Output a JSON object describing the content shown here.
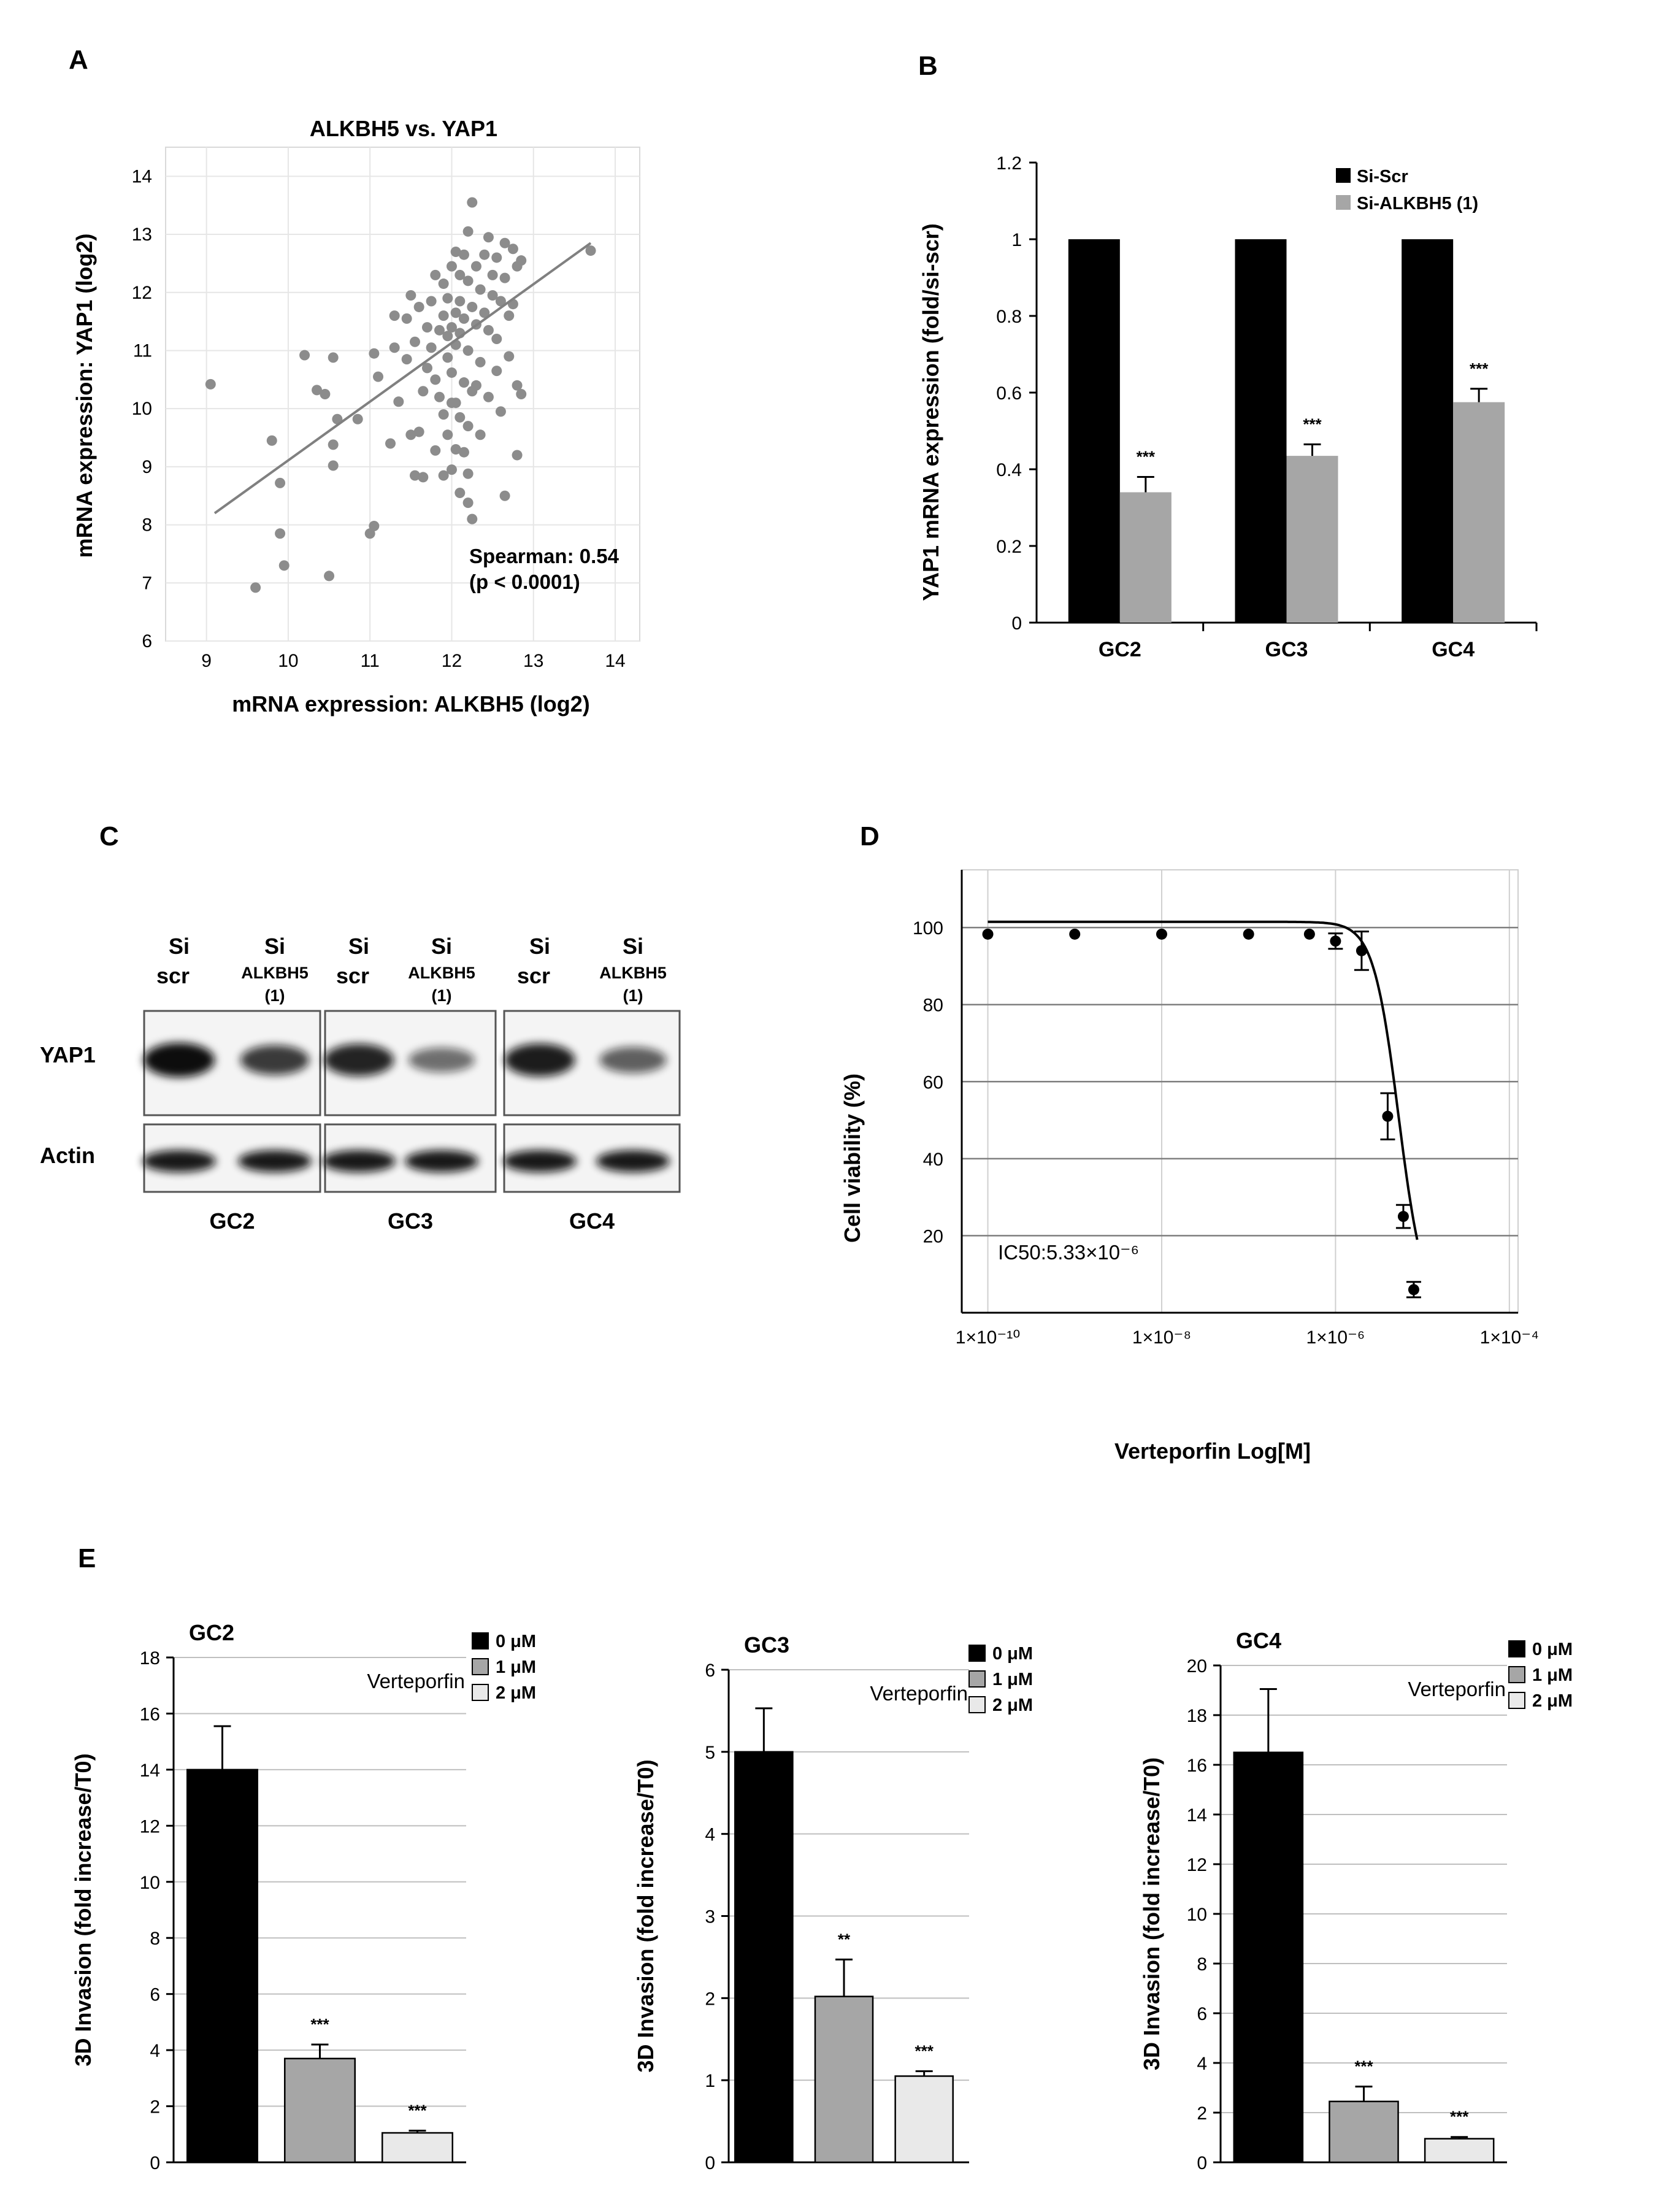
{
  "panels": {
    "A": "A",
    "B": "B",
    "C": "C",
    "D": "D",
    "E": "E"
  },
  "colors": {
    "black": "#000000",
    "gray": "#a6a6a6",
    "light": "#e9e9e9",
    "scatter": "#8c8c8c",
    "grid": "#cfcfcf"
  },
  "chart_data": [
    {
      "id": "A",
      "type": "scatter",
      "title": "ALKBH5 vs. YAP1",
      "xlabel": "mRNA expression: ALKBH5 (log2)",
      "ylabel": "mRNA expression: YAP1 (log2)",
      "xlim": [
        8.5,
        14.3
      ],
      "ylim": [
        6,
        14.5
      ],
      "xticks": [
        9,
        10,
        11,
        12,
        13,
        14
      ],
      "yticks": [
        6,
        7,
        8,
        9,
        10,
        11,
        12,
        13,
        14
      ],
      "fit": {
        "x": [
          9.1,
          13.7
        ],
        "y": [
          8.2,
          12.85
        ]
      },
      "annotation": [
        "Spearman: 0.54",
        "(p < 0.0001)"
      ],
      "points": [
        [
          9.05,
          10.42
        ],
        [
          9.6,
          6.92
        ],
        [
          9.8,
          9.45
        ],
        [
          9.9,
          7.85
        ],
        [
          9.9,
          8.72
        ],
        [
          9.95,
          7.3
        ],
        [
          10.2,
          10.92
        ],
        [
          10.35,
          10.32
        ],
        [
          10.45,
          10.25
        ],
        [
          10.5,
          7.12
        ],
        [
          10.55,
          10.88
        ],
        [
          10.55,
          9.38
        ],
        [
          10.55,
          9.02
        ],
        [
          10.6,
          9.82
        ],
        [
          10.85,
          9.82
        ],
        [
          11.0,
          7.85
        ],
        [
          11.05,
          7.98
        ],
        [
          11.05,
          10.95
        ],
        [
          11.1,
          10.55
        ],
        [
          11.25,
          9.4
        ],
        [
          11.3,
          11.05
        ],
        [
          11.3,
          11.6
        ],
        [
          11.35,
          10.12
        ],
        [
          11.45,
          11.55
        ],
        [
          11.45,
          10.85
        ],
        [
          11.5,
          9.55
        ],
        [
          11.55,
          11.15
        ],
        [
          11.55,
          8.85
        ],
        [
          11.6,
          11.75
        ],
        [
          11.6,
          9.6
        ],
        [
          11.65,
          10.3
        ],
        [
          11.65,
          8.82
        ],
        [
          11.7,
          11.4
        ],
        [
          11.7,
          10.7
        ],
        [
          11.75,
          11.85
        ],
        [
          11.75,
          11.05
        ],
        [
          11.8,
          10.5
        ],
        [
          11.8,
          9.28
        ],
        [
          11.85,
          11.35
        ],
        [
          11.85,
          10.2
        ],
        [
          11.9,
          12.15
        ],
        [
          11.9,
          11.6
        ],
        [
          11.9,
          9.9
        ],
        [
          11.9,
          8.85
        ],
        [
          11.95,
          11.9
        ],
        [
          11.95,
          11.25
        ],
        [
          11.95,
          10.88
        ],
        [
          11.95,
          9.55
        ],
        [
          12.0,
          12.45
        ],
        [
          12.0,
          11.4
        ],
        [
          12.0,
          10.62
        ],
        [
          12.0,
          8.95
        ],
        [
          12.05,
          12.7
        ],
        [
          12.05,
          11.65
        ],
        [
          12.05,
          11.1
        ],
        [
          12.05,
          10.1
        ],
        [
          12.05,
          9.3
        ],
        [
          12.1,
          12.3
        ],
        [
          12.1,
          11.85
        ],
        [
          12.1,
          11.3
        ],
        [
          12.1,
          9.85
        ],
        [
          12.1,
          8.55
        ],
        [
          12.15,
          12.65
        ],
        [
          12.15,
          11.55
        ],
        [
          12.15,
          10.45
        ],
        [
          12.15,
          9.25
        ],
        [
          12.2,
          13.05
        ],
        [
          12.2,
          12.2
        ],
        [
          12.2,
          11.0
        ],
        [
          12.2,
          9.7
        ],
        [
          12.2,
          8.88
        ],
        [
          12.25,
          13.55
        ],
        [
          12.25,
          11.75
        ],
        [
          12.25,
          10.3
        ],
        [
          12.25,
          8.1
        ],
        [
          12.3,
          12.45
        ],
        [
          12.3,
          11.45
        ],
        [
          12.3,
          10.4
        ],
        [
          12.35,
          12.05
        ],
        [
          12.35,
          10.8
        ],
        [
          12.35,
          9.55
        ],
        [
          12.4,
          12.65
        ],
        [
          12.4,
          11.65
        ],
        [
          12.45,
          12.95
        ],
        [
          12.45,
          11.35
        ],
        [
          12.45,
          10.2
        ],
        [
          12.5,
          12.3
        ],
        [
          12.5,
          11.95
        ],
        [
          12.55,
          12.6
        ],
        [
          12.55,
          11.2
        ],
        [
          12.55,
          10.65
        ],
        [
          12.6,
          11.85
        ],
        [
          12.6,
          9.95
        ],
        [
          12.65,
          12.85
        ],
        [
          12.65,
          12.25
        ],
        [
          12.65,
          8.5
        ],
        [
          12.7,
          11.6
        ],
        [
          12.7,
          10.9
        ],
        [
          12.75,
          12.75
        ],
        [
          12.75,
          11.8
        ],
        [
          12.8,
          12.45
        ],
        [
          12.8,
          10.4
        ],
        [
          12.8,
          9.2
        ],
        [
          12.85,
          10.25
        ],
        [
          12.85,
          12.55
        ],
        [
          12.2,
          8.38
        ],
        [
          13.7,
          12.72
        ],
        [
          11.5,
          11.95
        ],
        [
          11.8,
          12.3
        ],
        [
          12.0,
          10.1
        ]
      ]
    },
    {
      "id": "B",
      "type": "bar",
      "ylabel": "YAP1 mRNA expression (fold/si-scr)",
      "categories": [
        "GC2",
        "GC3",
        "GC4"
      ],
      "ylim": [
        0,
        1.2
      ],
      "yticks": [
        "0",
        "0.2",
        "0.4",
        "0.6",
        "0.8",
        "1",
        "1.2"
      ],
      "series": [
        {
          "name": "Si-Scr",
          "color": "#000000",
          "values": [
            1,
            1,
            1
          ],
          "errors": [
            0,
            0,
            0
          ],
          "sig": [
            "",
            "",
            ""
          ]
        },
        {
          "name": "Si-ALKBH5 (1)",
          "color": "#a6a6a6",
          "values": [
            0.34,
            0.435,
            0.575
          ],
          "errors": [
            0.04,
            0.03,
            0.035
          ],
          "sig": [
            "***",
            "***",
            "***"
          ]
        }
      ]
    },
    {
      "id": "D",
      "type": "line",
      "xlabel": "Verteporfin Log[M]",
      "ylabel": "Cell viability (%)",
      "xlim_log10": [
        -10.3,
        -3.9
      ],
      "ylim": [
        0,
        115
      ],
      "xticks": [
        {
          "value": -10,
          "label": "1×10⁻¹⁰"
        },
        {
          "value": -8,
          "label": "1×10⁻⁸"
        },
        {
          "value": -6,
          "label": "1×10⁻⁶"
        },
        {
          "value": -4,
          "label": "1×10⁻⁴"
        }
      ],
      "yticks": [
        20,
        40,
        60,
        80,
        100
      ],
      "annotation": "IC50:5.33×10⁻⁶",
      "ic50_log10": -5.273,
      "hill": 3.0,
      "top": 101.5,
      "points": [
        {
          "logx": -10.0,
          "y": 98.3,
          "err": 0
        },
        {
          "logx": -9.0,
          "y": 98.3,
          "err": 0
        },
        {
          "logx": -8.0,
          "y": 98.3,
          "err": 0
        },
        {
          "logx": -7.0,
          "y": 98.3,
          "err": 0
        },
        {
          "logx": -6.3,
          "y": 98.3,
          "err": 0
        },
        {
          "logx": -6.0,
          "y": 96.5,
          "err": 2
        },
        {
          "logx": -5.7,
          "y": 94,
          "err": 5
        },
        {
          "logx": -5.4,
          "y": 51,
          "err": 6
        },
        {
          "logx": -5.22,
          "y": 25,
          "err": 3
        },
        {
          "logx": -5.1,
          "y": 6,
          "err": 2
        }
      ]
    },
    {
      "id": "E1",
      "type": "bar",
      "title": "GC2",
      "ylabel": "3D Invasion (fold increase/T0)",
      "annotation": "Verteporfin",
      "ylim": [
        0,
        18
      ],
      "yticks": [
        "0",
        "2",
        "4",
        "6",
        "8",
        "10",
        "12",
        "14",
        "16",
        "18"
      ],
      "categories": [
        "0 μM",
        "1 μM",
        "2 μM"
      ],
      "colors": [
        "#000000",
        "#a6a6a6",
        "#e9e9e9"
      ],
      "values": [
        14,
        3.7,
        1.05
      ],
      "errors": [
        1.55,
        0.5,
        0.08
      ],
      "sig": [
        "",
        "***",
        "***"
      ]
    },
    {
      "id": "E2",
      "type": "bar",
      "title": "GC3",
      "ylabel": "3D Invasion (fold increase/T0)",
      "annotation": "Verteporfin",
      "ylim": [
        0,
        6
      ],
      "yticks": [
        "0",
        "1",
        "2",
        "3",
        "4",
        "5",
        "6"
      ],
      "categories": [
        "0 μM",
        "1 μM",
        "2 μM"
      ],
      "colors": [
        "#000000",
        "#a6a6a6",
        "#e9e9e9"
      ],
      "values": [
        5.0,
        2.02,
        1.05
      ],
      "errors": [
        0.53,
        0.45,
        0.06
      ],
      "sig": [
        "",
        "**",
        "***"
      ]
    },
    {
      "id": "E3",
      "type": "bar",
      "title": "GC4",
      "ylabel": "3D Invasion (fold increase/T0)",
      "annotation": "Verteporfin",
      "ylim": [
        0,
        20
      ],
      "yticks": [
        "0",
        "2",
        "4",
        "6",
        "8",
        "10",
        "12",
        "14",
        "16",
        "18",
        "20"
      ],
      "categories": [
        "0 μM",
        "1 μM",
        "2 μM"
      ],
      "colors": [
        "#000000",
        "#a6a6a6",
        "#e9e9e9"
      ],
      "values": [
        16.5,
        2.45,
        0.95
      ],
      "errors": [
        2.55,
        0.6,
        0.07
      ],
      "sig": [
        "",
        "***",
        "***"
      ]
    }
  ],
  "western_blot": {
    "lanes": [
      {
        "top": "Si",
        "bottom": "scr",
        "extra": ""
      },
      {
        "top": "Si",
        "bottom": "ALKBH5",
        "extra": "(1)"
      },
      {
        "top": "Si",
        "bottom": "scr",
        "extra": ""
      },
      {
        "top": "Si",
        "bottom": "ALKBH5",
        "extra": "(1)"
      },
      {
        "top": "Si",
        "bottom": "scr",
        "extra": ""
      },
      {
        "top": "Si",
        "bottom": "ALKBH5",
        "extra": "(1)"
      }
    ],
    "rows": [
      "YAP1",
      "Actin"
    ],
    "groups": [
      "GC2",
      "GC3",
      "GC4"
    ],
    "yap1_intensity": [
      1.0,
      0.7,
      0.85,
      0.35,
      0.9,
      0.45
    ]
  }
}
